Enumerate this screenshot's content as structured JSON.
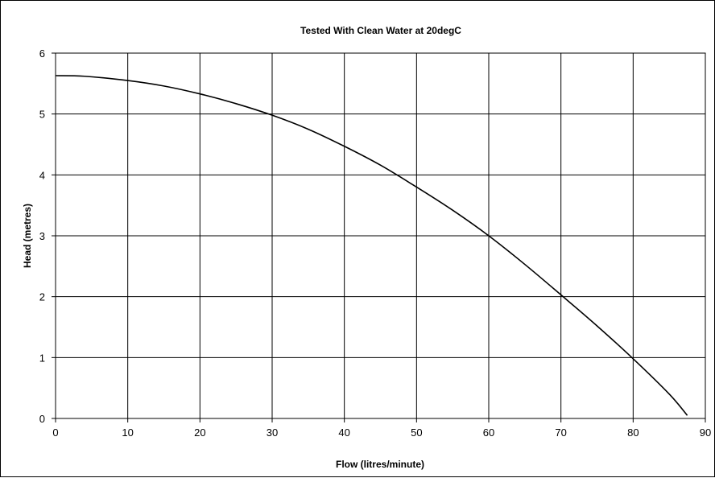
{
  "chart_data": {
    "type": "line",
    "title": "Tested With Clean Water at 20degC",
    "xlabel": "Flow (litres/minute)",
    "ylabel": "Head (metres)",
    "xlim": [
      0,
      90
    ],
    "ylim": [
      0,
      6
    ],
    "xticks": [
      0,
      10,
      20,
      30,
      40,
      50,
      60,
      70,
      80,
      90
    ],
    "yticks": [
      0,
      1,
      2,
      3,
      4,
      5,
      6
    ],
    "grid": true,
    "legend": "none",
    "line_color": "#000000",
    "series": [
      {
        "x": [
          0,
          4,
          10,
          15,
          20,
          25,
          30,
          35,
          40,
          45,
          50,
          55,
          60,
          65,
          70,
          75,
          80,
          85,
          87.5
        ],
        "y": [
          5.63,
          5.62,
          5.55,
          5.46,
          5.33,
          5.17,
          4.98,
          4.75,
          4.47,
          4.16,
          3.8,
          3.42,
          3.0,
          2.53,
          2.03,
          1.52,
          0.98,
          0.4,
          0.05
        ]
      }
    ]
  }
}
